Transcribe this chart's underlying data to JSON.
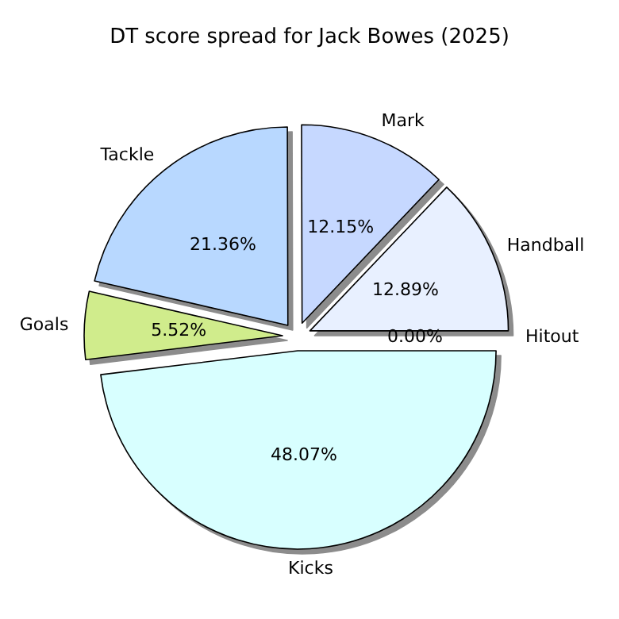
{
  "chart_data": {
    "type": "pie",
    "title": "DT score spread for Jack Bowes (2025)",
    "categories": [
      "Hitout",
      "Handball",
      "Mark",
      "Tackle",
      "Goals",
      "Kicks"
    ],
    "values": [
      0.0,
      12.89,
      12.15,
      21.36,
      5.52,
      48.07
    ],
    "colors": [
      "#d8e4ff",
      "#e8f0ff",
      "#c6d8ff",
      "#b8d8ff",
      "#d0ec8c",
      "#d8ffff"
    ],
    "value_labels": [
      "0.00%",
      "12.89%",
      "12.15%",
      "21.36%",
      "5.52%",
      "48.07%"
    ],
    "legend": false
  }
}
